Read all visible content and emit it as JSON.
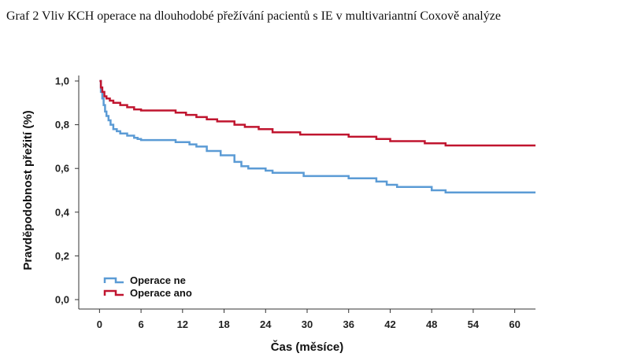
{
  "caption": "Graf 2 Vliv KCH operace na dlouhodobé přežívání pacientů s IE v multivariantní Coxově analýze",
  "chart_data": {
    "type": "line",
    "step": true,
    "xlabel": "Čas (měsíce)",
    "ylabel": "Pravděpodobnost přežití (%)",
    "xlim": [
      -3,
      63
    ],
    "ylim": [
      0,
      1.0
    ],
    "xticks": [
      0,
      6,
      12,
      18,
      24,
      30,
      36,
      42,
      48,
      54,
      60
    ],
    "yticks": [
      0,
      0.2,
      0.4,
      0.6,
      0.8,
      1.0
    ],
    "xtick_labels": [
      "0",
      "6",
      "12",
      "18",
      "24",
      "30",
      "36",
      "42",
      "48",
      "54",
      "60"
    ],
    "ytick_labels": [
      "0,0",
      "0,2",
      "0,4",
      "0,6",
      "0,8",
      "1,0"
    ],
    "grid": false,
    "legend_position": "bottom-left",
    "series": [
      {
        "name": "Operace ne",
        "color": "#5b9bd5",
        "x": [
          0,
          0.2,
          0.4,
          0.6,
          0.8,
          1.0,
          1.3,
          1.6,
          2.0,
          2.5,
          3.0,
          4.0,
          5.0,
          5.5,
          6.0,
          11.0,
          13.0,
          14.0,
          15.5,
          17.5,
          19.5,
          20.5,
          21.5,
          24.0,
          25.0,
          29.5,
          36.0,
          40.0,
          41.5,
          43.0,
          48.0,
          50.0,
          63.0
        ],
        "y": [
          1.0,
          0.95,
          0.92,
          0.89,
          0.86,
          0.84,
          0.82,
          0.8,
          0.78,
          0.77,
          0.76,
          0.75,
          0.74,
          0.735,
          0.73,
          0.72,
          0.71,
          0.7,
          0.68,
          0.66,
          0.63,
          0.61,
          0.6,
          0.59,
          0.58,
          0.565,
          0.555,
          0.54,
          0.525,
          0.515,
          0.5,
          0.49,
          0.49
        ]
      },
      {
        "name": "Operace ano",
        "color": "#c0152f",
        "x": [
          0,
          0.2,
          0.4,
          0.7,
          1.0,
          1.5,
          2.0,
          3.0,
          4.0,
          5.0,
          6.0,
          11.0,
          12.5,
          14.0,
          15.5,
          17.0,
          19.5,
          21.0,
          23.0,
          25.0,
          29.0,
          36.0,
          40.0,
          42.0,
          47.0,
          50.0,
          63.0
        ],
        "y": [
          1.0,
          0.97,
          0.95,
          0.93,
          0.92,
          0.91,
          0.9,
          0.89,
          0.88,
          0.87,
          0.865,
          0.855,
          0.845,
          0.835,
          0.825,
          0.815,
          0.8,
          0.79,
          0.78,
          0.765,
          0.755,
          0.745,
          0.735,
          0.725,
          0.715,
          0.705,
          0.705
        ]
      }
    ]
  }
}
